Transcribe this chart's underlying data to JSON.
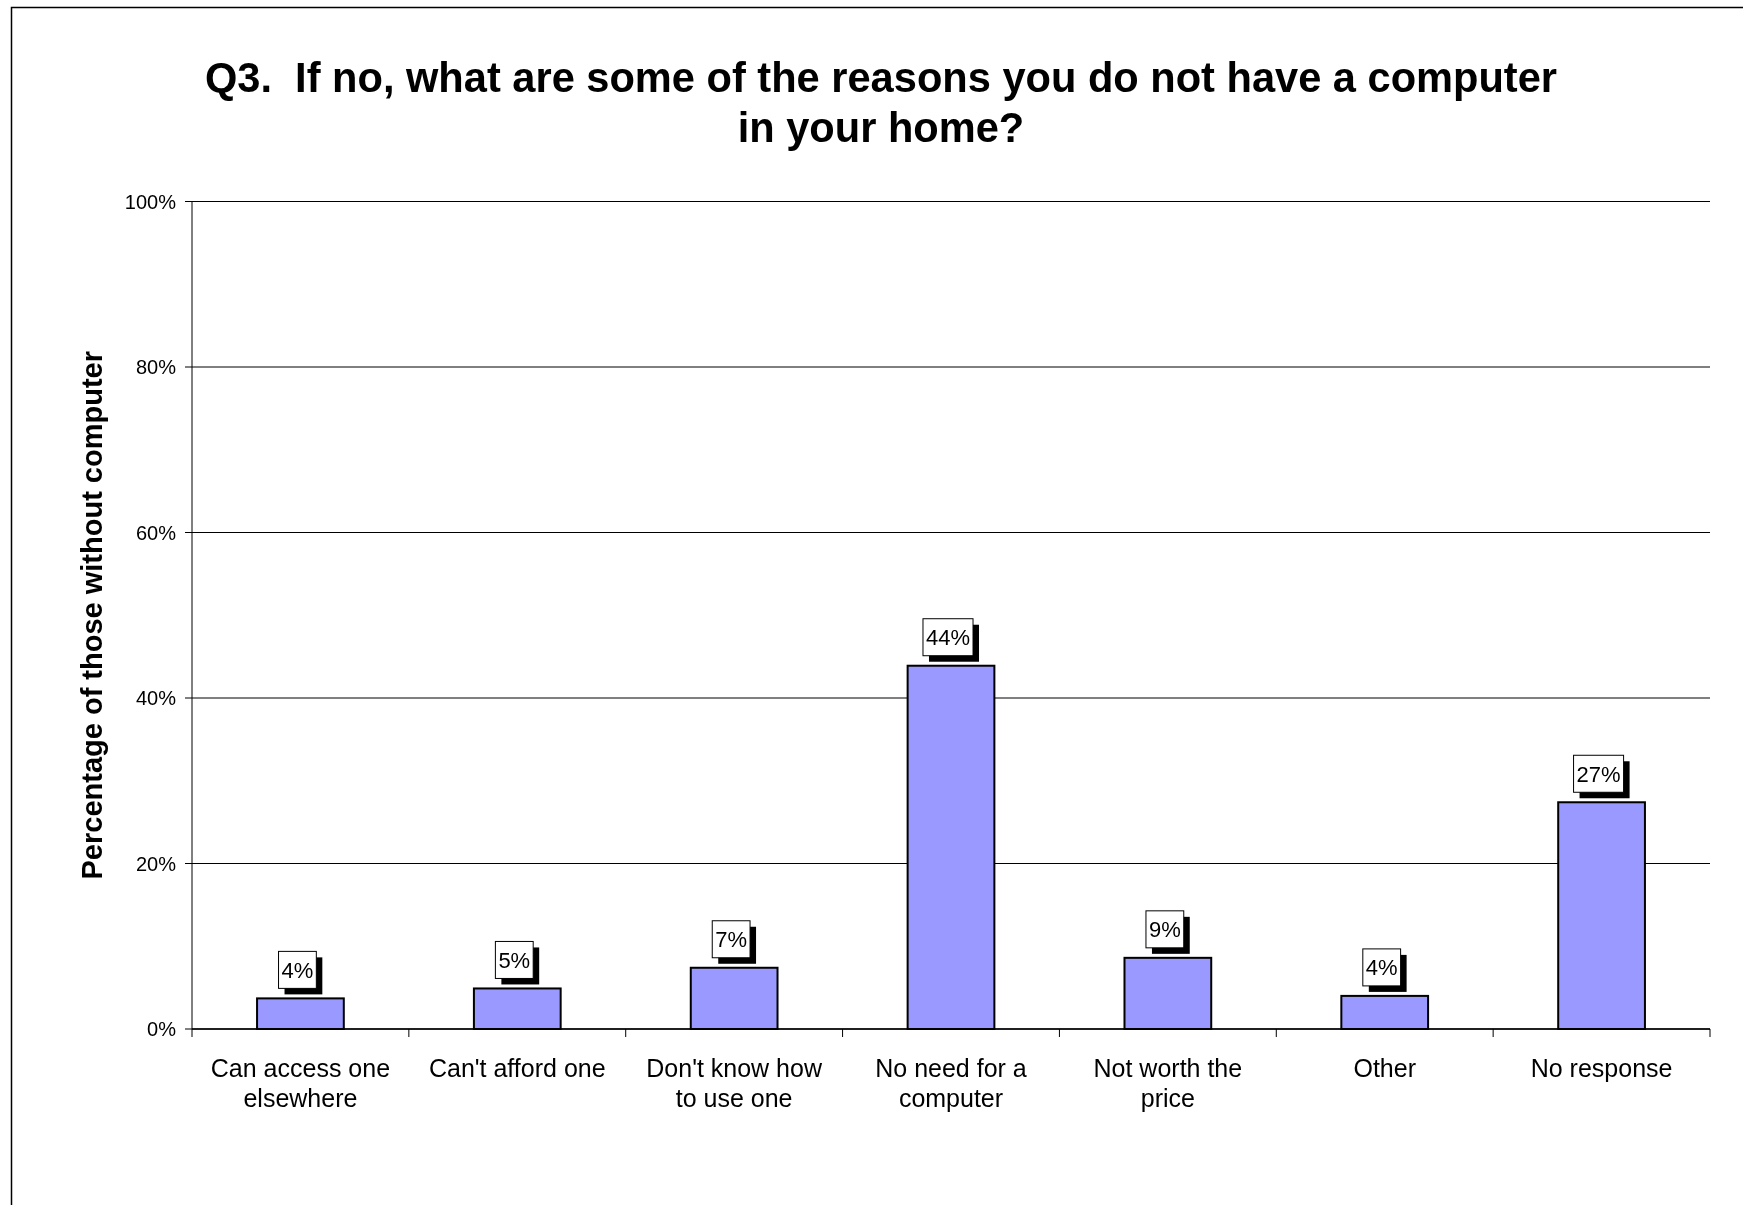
{
  "chart_data": {
    "type": "bar",
    "title": "Q3.  If no, what are some of the reasons you do not have a computer in your home?",
    "ylabel": "Percentage of those without computer",
    "categories": [
      "Can access one elsewhere",
      "Can't afford one",
      "Don't know how to use one",
      "No need for a computer",
      "Not worth the price",
      "Other",
      "No response"
    ],
    "values": [
      3.7,
      4.9,
      7.4,
      43.9,
      8.6,
      4.0,
      27.4
    ],
    "color": "#9999ff",
    "value_labels": [
      "4%",
      "5%",
      "7%",
      "44%",
      "9%",
      "4%",
      "27%"
    ],
    "ylim": [
      0,
      100
    ],
    "yticks": [
      {
        "value": 0,
        "label": "0%"
      },
      {
        "value": 20,
        "label": "20%"
      },
      {
        "value": 40,
        "label": "40%"
      },
      {
        "value": 60,
        "label": "60%"
      },
      {
        "value": 80,
        "label": "80%"
      },
      {
        "value": 100,
        "label": "100%"
      }
    ],
    "grid": "y"
  }
}
